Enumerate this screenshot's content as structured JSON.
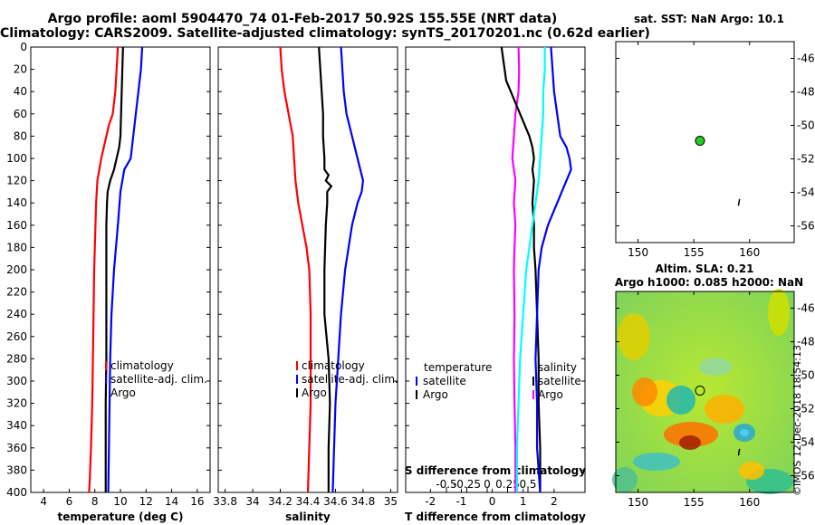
{
  "header": {
    "title_line1": "Argo profile: aoml 5904470_74 01-Feb-2017 50.92S 155.55E (NRT data)",
    "title_line2": "Climatology: CARS2009. Satellite-adjusted climatology: synTS_20170201.nc (0.62d earlier)"
  },
  "colors": {
    "climatology": "#ff0000",
    "satellite": "#0000ff",
    "argo": "#000000",
    "sal_diff": "#ff00ff",
    "temp_diff_sat": "#00ffff"
  },
  "depth_axis": {
    "ylim": [
      0,
      400
    ],
    "ticks": [
      0,
      20,
      40,
      60,
      80,
      100,
      120,
      140,
      160,
      180,
      200,
      220,
      240,
      260,
      280,
      300,
      320,
      340,
      360,
      380,
      400
    ]
  },
  "map_sst": {
    "title": "sat. SST: NaN Argo: 10.1",
    "xlim": [
      148,
      164
    ],
    "ylim": [
      -57,
      -45
    ],
    "xticks": [
      150,
      155,
      160
    ],
    "yticks": [
      -46,
      -48,
      -50,
      -52,
      -54,
      -56
    ],
    "argo_position": {
      "lon": 155.55,
      "lat": -50.92
    }
  },
  "map_sla": {
    "title_line1": "Altim. SLA: 0.21",
    "title_line2": "Argo h1000: 0.085 h2000: NaN",
    "xlim": [
      148,
      164
    ],
    "ylim": [
      -57,
      -45
    ],
    "xticks": [
      150,
      155,
      160
    ],
    "yticks": [
      -46,
      -48,
      -50,
      -52,
      -54,
      -56
    ],
    "argo_position": {
      "lon": 155.55,
      "lat": -50.92
    }
  },
  "watermark": "©IMOS 12-Dec-2018 18:54:13",
  "chart_data": [
    {
      "type": "line",
      "name": "temperature",
      "xlabel": "temperature (deg C)",
      "ylabel": "",
      "xlim": [
        3,
        17
      ],
      "xticks": [
        4,
        6,
        8,
        10,
        12,
        14,
        16
      ],
      "legend": [
        "climatology",
        "satellite-adj. clim.",
        "Argo"
      ],
      "series": [
        {
          "name": "climatology",
          "color": "#ff0000",
          "depth": [
            0,
            20,
            40,
            60,
            70,
            80,
            90,
            100,
            110,
            120,
            140,
            160,
            180,
            200,
            240,
            280,
            320,
            360,
            390,
            400
          ],
          "values": [
            9.8,
            9.7,
            9.6,
            9.4,
            9.1,
            8.9,
            8.7,
            8.5,
            8.35,
            8.2,
            8.1,
            8.05,
            8.0,
            7.95,
            7.9,
            7.85,
            7.8,
            7.7,
            7.6,
            7.55
          ]
        },
        {
          "name": "satellite-adj. clim.",
          "color": "#0000ff",
          "depth": [
            0,
            20,
            40,
            60,
            80,
            100,
            110,
            130,
            160,
            200,
            240,
            280,
            320,
            360,
            400
          ],
          "values": [
            11.7,
            11.6,
            11.4,
            11.2,
            11.0,
            10.8,
            10.3,
            10.0,
            9.8,
            9.5,
            9.3,
            9.2,
            9.15,
            9.1,
            9.05
          ]
        },
        {
          "name": "Argo",
          "color": "#000000",
          "depth": [
            0,
            20,
            40,
            60,
            80,
            90,
            100,
            110,
            120,
            130,
            140,
            160,
            180,
            200,
            240,
            280,
            320,
            360,
            400
          ],
          "values": [
            10.2,
            10.15,
            10.1,
            10.05,
            10.0,
            9.9,
            9.7,
            9.5,
            9.2,
            9.0,
            8.95,
            8.9,
            8.9,
            8.9,
            8.9,
            8.9,
            8.85,
            8.85,
            8.85
          ]
        }
      ]
    },
    {
      "type": "line",
      "name": "salinity",
      "xlabel": "salinity",
      "ylabel": "",
      "xlim": [
        33.75,
        35.05
      ],
      "xticks": [
        33.8,
        34,
        34.2,
        34.4,
        34.6,
        34.8,
        35
      ],
      "xticklabels": [
        "33.8",
        "34",
        "34.2",
        "34.4",
        "34.6",
        "34.8",
        "35"
      ],
      "legend": [
        "climatology",
        "satellite-adj. clim.",
        "Argo"
      ],
      "series": [
        {
          "name": "climatology",
          "color": "#ff0000",
          "depth": [
            0,
            20,
            40,
            60,
            80,
            100,
            120,
            140,
            160,
            180,
            200,
            240,
            280,
            320,
            360,
            400
          ],
          "values": [
            34.2,
            34.21,
            34.23,
            34.26,
            34.29,
            34.3,
            34.31,
            34.33,
            34.36,
            34.39,
            34.41,
            34.42,
            34.42,
            34.42,
            34.41,
            34.4
          ]
        },
        {
          "name": "satellite-adj. clim.",
          "color": "#0000ff",
          "depth": [
            0,
            20,
            40,
            60,
            80,
            100,
            110,
            120,
            130,
            140,
            160,
            200,
            240,
            280,
            320,
            360,
            400
          ],
          "values": [
            34.64,
            34.65,
            34.66,
            34.68,
            34.72,
            34.76,
            34.78,
            34.8,
            34.79,
            34.76,
            34.72,
            34.67,
            34.64,
            34.62,
            34.6,
            34.59,
            34.58
          ]
        },
        {
          "name": "Argo",
          "color": "#000000",
          "depth": [
            0,
            20,
            40,
            60,
            80,
            100,
            110,
            115,
            120,
            125,
            130,
            140,
            160,
            200,
            240,
            280,
            320,
            360,
            400
          ],
          "values": [
            34.48,
            34.49,
            34.5,
            34.51,
            34.51,
            34.52,
            34.52,
            34.55,
            34.53,
            34.57,
            34.54,
            34.54,
            34.53,
            34.52,
            34.52,
            34.55,
            34.56,
            34.55,
            34.55
          ]
        }
      ]
    },
    {
      "type": "line",
      "name": "difference from climatology",
      "xlabel": "T difference from climatology",
      "top_axis_label": "S difference from climatology",
      "xlim": [
        -2.8,
        3.0
      ],
      "xticks": [
        -2,
        -1,
        0,
        1,
        2
      ],
      "xticklabels": [
        "-2",
        "-1",
        "0",
        "1",
        "2"
      ],
      "top_ticks": [
        -0.5,
        -0.25,
        0,
        0.25,
        0.5
      ],
      "top_ticklabels": [
        "-0.5",
        "-0.25",
        "0",
        "0.25",
        "0.5"
      ],
      "legend_temperature": {
        "title": "temperature",
        "items": [
          "satellite",
          "Argo"
        ]
      },
      "legend_salinity": {
        "title": "salinity",
        "items": [
          "satellite",
          "Argo"
        ]
      },
      "series": [
        {
          "name": "S diff satellite",
          "color": "#ff00ff",
          "depth": [
            0,
            20,
            40,
            60,
            80,
            100,
            120,
            140,
            160,
            180,
            200,
            240,
            280,
            320,
            360,
            400
          ],
          "values": [
            0.85,
            0.87,
            0.85,
            0.75,
            0.7,
            0.65,
            0.75,
            0.7,
            0.75,
            0.72,
            0.7,
            0.72,
            0.7,
            0.72,
            0.75,
            0.75
          ]
        },
        {
          "name": "S diff Argo",
          "color": "#000000",
          "depth": [
            0,
            10,
            20,
            30,
            40,
            60,
            80,
            90,
            100,
            110,
            120,
            140,
            160,
            180,
            200,
            240,
            280,
            320,
            360,
            400
          ],
          "values": [
            0.3,
            0.35,
            0.4,
            0.45,
            0.6,
            0.9,
            1.2,
            1.3,
            1.35,
            1.3,
            1.35,
            1.3,
            1.35,
            1.35,
            1.4,
            1.45,
            1.5,
            1.5,
            1.55,
            1.55
          ]
        },
        {
          "name": "T diff satellite",
          "color": "#00ffff",
          "depth": [
            0,
            20,
            40,
            60,
            80,
            100,
            120,
            140,
            160,
            200,
            240,
            280,
            320,
            360,
            400
          ],
          "values": [
            1.7,
            1.7,
            1.65,
            1.65,
            1.6,
            1.55,
            1.5,
            1.4,
            1.3,
            1.1,
            1.0,
            0.9,
            0.85,
            0.8,
            0.8
          ]
        },
        {
          "name": "T diff Argo",
          "color": "#0000ff",
          "depth": [
            0,
            20,
            40,
            60,
            80,
            90,
            100,
            110,
            120,
            140,
            160,
            180,
            200,
            240,
            280,
            320,
            360,
            400
          ],
          "values": [
            1.9,
            1.95,
            2.0,
            2.1,
            2.2,
            2.4,
            2.5,
            2.55,
            2.4,
            2.1,
            1.8,
            1.6,
            1.5,
            1.45,
            1.4,
            1.45,
            1.45,
            1.55
          ]
        }
      ]
    }
  ]
}
